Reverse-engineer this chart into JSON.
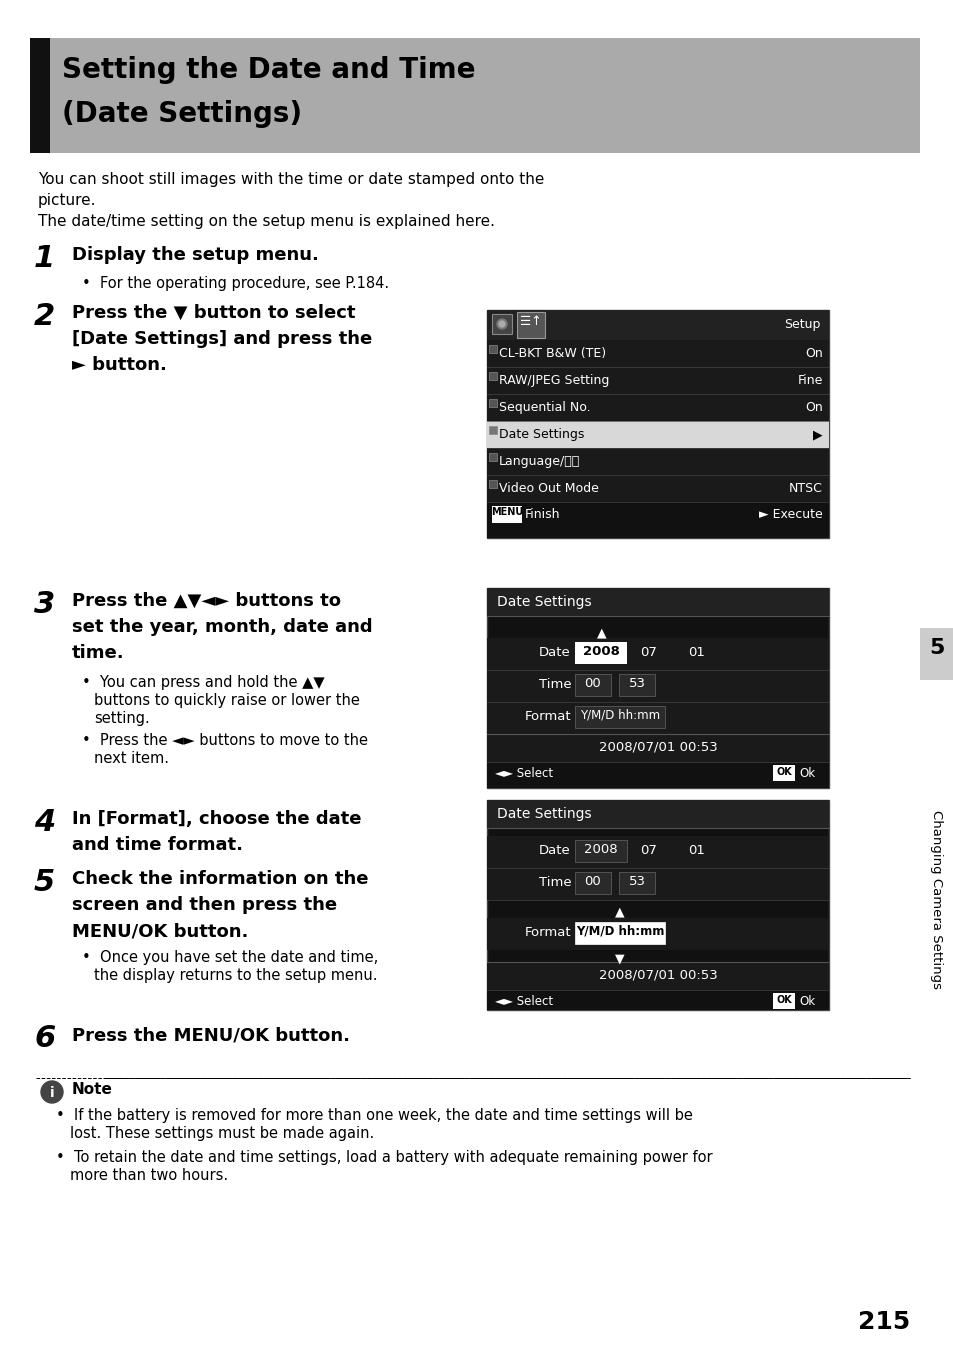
{
  "title_line1": "Setting the Date and Time",
  "title_line2": "(Date Settings)",
  "title_bg": "#aaaaaa",
  "title_bar_color": "#111111",
  "body_bg": "#ffffff",
  "intro_text1": "You can shoot still images with the time or date stamped onto the",
  "intro_text2": "picture.",
  "intro_text3": "The date/time setting on the setup menu is explained here.",
  "step1_num": "1",
  "step1_text": "Display the setup menu.",
  "step1_bullet": "For the operating procedure, see P.184.",
  "step2_num": "2",
  "step2_line1": "Press the ▼ button to select",
  "step2_line2": "[Date Settings] and press the",
  "step2_line3": "► button.",
  "step3_num": "3",
  "step3_line1": "Press the ▲▼◄► buttons to",
  "step3_line2": "set the year, month, date and",
  "step3_line3": "time.",
  "step3_b1_line1": "You can press and hold the ▲▼",
  "step3_b1_line2": "buttons to quickly raise or lower the",
  "step3_b1_line3": "setting.",
  "step3_b2_line1": "Press the ◄► buttons to move to the",
  "step3_b2_line2": "next item.",
  "step4_num": "4",
  "step4_line1": "In [Format], choose the date",
  "step4_line2": "and time format.",
  "step5_num": "5",
  "step5_line1": "Check the information on the",
  "step5_line2": "screen and then press the",
  "step5_line3": "MENU/OK button.",
  "step5_b1_line1": "Once you have set the date and time,",
  "step5_b1_line2": "the display returns to the setup menu.",
  "step6_num": "6",
  "step6_text": "Press the MENU/OK button.",
  "note_bullet1_line1": "If the battery is removed for more than one week, the date and time settings will be",
  "note_bullet1_line2": "lost. These settings must be made again.",
  "note_bullet2_line1": "To retain the date and time settings, load a battery with adequate remaining power for",
  "note_bullet2_line2": "more than two hours.",
  "page_num": "215",
  "sidebar_text": "Changing Camera Settings",
  "sidebar_num": "5",
  "screen_bg": "#111111",
  "screen_dark_row": "#1a1a1a",
  "screen_light_row": "#e8e8e8",
  "screen_header_bg": "#1e1e1e"
}
